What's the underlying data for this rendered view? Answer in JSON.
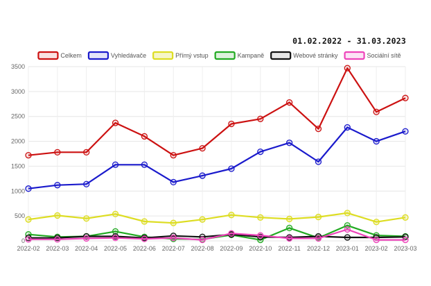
{
  "chart_data": {
    "type": "line",
    "date_range": "01.02.2022 - 31.03.2023",
    "categories": [
      "2022-02",
      "2022-03",
      "2022-04",
      "2022-05",
      "2022-06",
      "2022-07",
      "2022-08",
      "2022-09",
      "2022-10",
      "2022-11",
      "2022-12",
      "2023-01",
      "2023-02",
      "2023-03"
    ],
    "ylim": [
      0,
      3500
    ],
    "yticks": [
      0,
      500,
      1000,
      1500,
      2000,
      2500,
      3000,
      3500
    ],
    "grid": true,
    "legend_position": "top",
    "series": [
      {
        "name": "Celkem",
        "color": "#cc1111",
        "fill": "rgba(204,17,17,0.12)",
        "values": [
          1720,
          1780,
          1780,
          2370,
          2100,
          1720,
          1860,
          2350,
          2450,
          2780,
          2250,
          3470,
          2590,
          2870
        ]
      },
      {
        "name": "Vyhledávače",
        "color": "#1a1acc",
        "fill": "rgba(26,26,204,0.12)",
        "values": [
          1050,
          1120,
          1140,
          1530,
          1530,
          1180,
          1310,
          1450,
          1790,
          1970,
          1590,
          2280,
          2000,
          2200
        ]
      },
      {
        "name": "Přímý vstup",
        "color": "#dddd22",
        "fill": "rgba(221,221,34,0.25)",
        "values": [
          430,
          510,
          450,
          540,
          390,
          360,
          430,
          520,
          470,
          440,
          480,
          560,
          380,
          470
        ]
      },
      {
        "name": "Kampaně",
        "color": "#22aa22",
        "fill": "rgba(34,170,34,0.15)",
        "values": [
          130,
          80,
          90,
          190,
          80,
          40,
          30,
          120,
          20,
          260,
          60,
          310,
          110,
          90
        ]
      },
      {
        "name": "Webové stránky",
        "color": "#111111",
        "fill": "rgba(17,17,17,0.10)",
        "values": [
          60,
          60,
          90,
          90,
          60,
          100,
          80,
          130,
          80,
          70,
          90,
          70,
          70,
          80
        ]
      },
      {
        "name": "Sociální sítě",
        "color": "#ee44bb",
        "fill": "rgba(238,68,187,0.15)",
        "values": [
          30,
          30,
          50,
          60,
          40,
          60,
          20,
          150,
          110,
          50,
          50,
          230,
          20,
          20
        ]
      }
    ]
  }
}
